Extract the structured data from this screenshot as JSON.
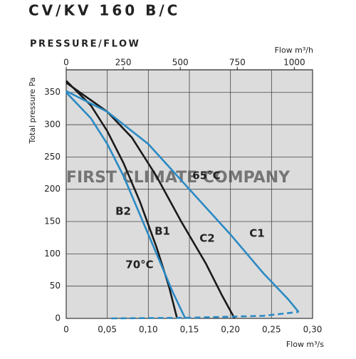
{
  "chart_data": {
    "type": "line",
    "title": "CV/KV 160 B/C",
    "subtitle": "PRESSURE/FLOW",
    "x_label": "Flow m³/s",
    "x2_label": "Flow m³/h",
    "y_label": "Total pressure Pa",
    "watermark": "FIRST CLIMATE COMPANY",
    "xlim": [
      0,
      0.3
    ],
    "xticks": [
      0,
      {
        "value": 0.05,
        "label": "0,05"
      },
      {
        "value": 0.1,
        "label": "0,10"
      },
      {
        "value": 0.15,
        "label": "0,15"
      },
      {
        "value": 0.2,
        "label": "0,20"
      },
      {
        "value": 0.25,
        "label": "0,25"
      },
      {
        "value": 0.3,
        "label": "0,30"
      }
    ],
    "x2lim": [
      0,
      1080
    ],
    "x2ticks": [
      0,
      250,
      500,
      750,
      1000
    ],
    "ylim": [
      0,
      385
    ],
    "yticks": [
      0,
      50,
      100,
      150,
      200,
      250,
      300,
      350
    ],
    "grid": true,
    "series": [
      {
        "name": "B2",
        "color": "#1a1a1a",
        "x": [
          0,
          0.03,
          0.05,
          0.07,
          0.09,
          0.11,
          0.125,
          0.135
        ],
        "values": [
          368,
          330,
          290,
          240,
          180,
          110,
          50,
          0
        ]
      },
      {
        "name": "B1",
        "color": "#2a8ac4",
        "x": [
          0,
          0.03,
          0.05,
          0.07,
          0.09,
          0.11,
          0.13,
          0.145
        ],
        "values": [
          350,
          310,
          270,
          220,
          160,
          100,
          40,
          0
        ]
      },
      {
        "name": "C2",
        "color": "#1a1a1a",
        "x": [
          0,
          0.05,
          0.08,
          0.11,
          0.14,
          0.17,
          0.19,
          0.205
        ],
        "values": [
          365,
          320,
          280,
          220,
          150,
          85,
          35,
          0
        ]
      },
      {
        "name": "C1",
        "color": "#2a8ac4",
        "x": [
          0,
          0.05,
          0.1,
          0.15,
          0.2,
          0.24,
          0.27,
          0.283
        ],
        "values": [
          352,
          320,
          270,
          200,
          130,
          70,
          30,
          10
        ]
      },
      {
        "color": "#2a8ac4",
        "dashed": true,
        "x": [
          0.055,
          0.15,
          0.24,
          0.283
        ],
        "values": [
          0,
          1,
          4,
          10
        ]
      }
    ],
    "annotations": [
      "65°C",
      "70°C"
    ]
  }
}
